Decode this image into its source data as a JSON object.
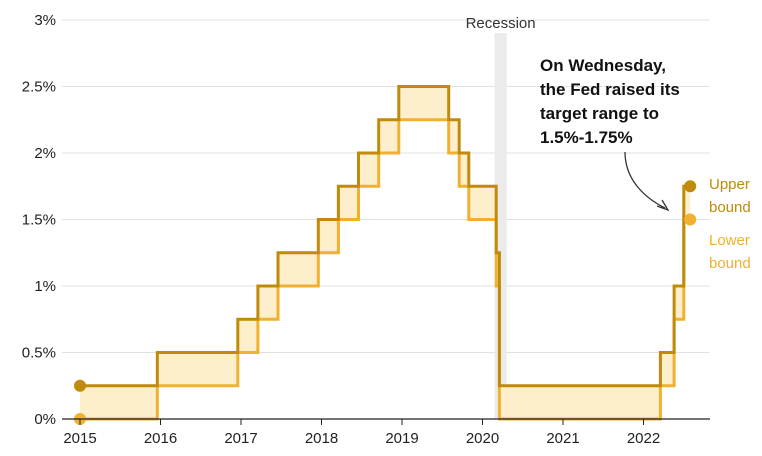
{
  "colors": {
    "upper": "#C08A0A",
    "lower": "#EFB12F",
    "fill": "#FDEFCB",
    "grid": "#E2E2E2",
    "recession": "#EBEBEB",
    "axis": "#222222"
  },
  "chart_data": {
    "type": "line",
    "title": "",
    "xlabel": "",
    "ylabel": "",
    "xlim": [
      2015.0,
      2022.75
    ],
    "ylim": [
      0,
      3
    ],
    "grid": true,
    "y_ticks": [
      0,
      0.5,
      1,
      1.5,
      2,
      2.5,
      3
    ],
    "y_tick_labels": [
      "0%",
      "0.5%",
      "1%",
      "1.5%",
      "2%",
      "2.5%",
      "3%"
    ],
    "x_ticks": [
      2015,
      2016,
      2017,
      2018,
      2019,
      2020,
      2021,
      2022
    ],
    "x_tick_labels": [
      "2015",
      "2016",
      "2017",
      "2018",
      "2019",
      "2020",
      "2021",
      "2022"
    ],
    "recession": {
      "label": "Recession",
      "start": 2020.15,
      "end": 2020.3
    },
    "series": [
      {
        "name": "Upper bound",
        "step": "post",
        "x": [
          2015.0,
          2015.96,
          2016.96,
          2017.21,
          2017.46,
          2017.96,
          2018.21,
          2018.46,
          2018.71,
          2018.96,
          2019.58,
          2019.71,
          2019.83,
          2020.17,
          2020.21,
          2022.21,
          2022.38,
          2022.5,
          2022.58
        ],
        "values": [
          0.25,
          0.5,
          0.75,
          1.0,
          1.25,
          1.5,
          1.75,
          2.0,
          2.25,
          2.5,
          2.25,
          2.0,
          1.75,
          1.25,
          0.25,
          0.5,
          1.0,
          1.75,
          1.75
        ]
      },
      {
        "name": "Lower bound",
        "step": "post",
        "x": [
          2015.0,
          2015.96,
          2016.96,
          2017.21,
          2017.46,
          2017.96,
          2018.21,
          2018.46,
          2018.71,
          2018.96,
          2019.58,
          2019.71,
          2019.83,
          2020.17,
          2020.21,
          2022.21,
          2022.38,
          2022.5,
          2022.58
        ],
        "values": [
          0.0,
          0.25,
          0.5,
          0.75,
          1.0,
          1.25,
          1.5,
          1.75,
          2.0,
          2.25,
          2.0,
          1.75,
          1.5,
          1.0,
          0.0,
          0.25,
          0.75,
          1.5,
          1.5
        ]
      }
    ],
    "annotation": {
      "lines": [
        "On Wednesday,",
        "the Fed raised its",
        "target range to",
        "1.5%-1.75%"
      ]
    },
    "legend": [
      {
        "lines": [
          "Upper",
          "bound"
        ],
        "series": "Upper bound"
      },
      {
        "lines": [
          "Lower",
          "bound"
        ],
        "series": "Lower bound"
      }
    ]
  }
}
